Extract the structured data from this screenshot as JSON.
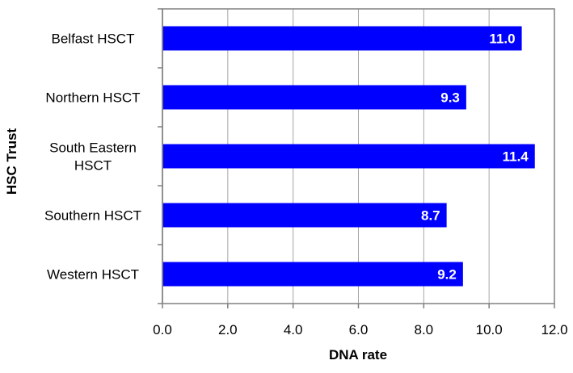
{
  "chart_data": {
    "type": "bar",
    "orientation": "horizontal",
    "categories": [
      [
        "Belfast HSCT"
      ],
      [
        "Northern HSCT"
      ],
      [
        "South Eastern",
        "HSCT"
      ],
      [
        "Southern HSCT"
      ],
      [
        "Western HSCT"
      ]
    ],
    "values": [
      11.0,
      9.3,
      11.4,
      8.7,
      9.2
    ],
    "data_labels": [
      "11.0",
      "9.3",
      "11.4",
      "8.7",
      "9.2"
    ],
    "xlabel": "DNA rate",
    "ylabel": "HSC Trust",
    "xlim": [
      0,
      12
    ],
    "xticks": [
      0,
      2,
      4,
      6,
      8,
      10,
      12
    ],
    "xtick_labels": [
      "0.0",
      "2.0",
      "4.0",
      "6.0",
      "8.0",
      "10.0",
      "12.0"
    ],
    "grid": "vertical",
    "bar_color": "#0000ff"
  }
}
